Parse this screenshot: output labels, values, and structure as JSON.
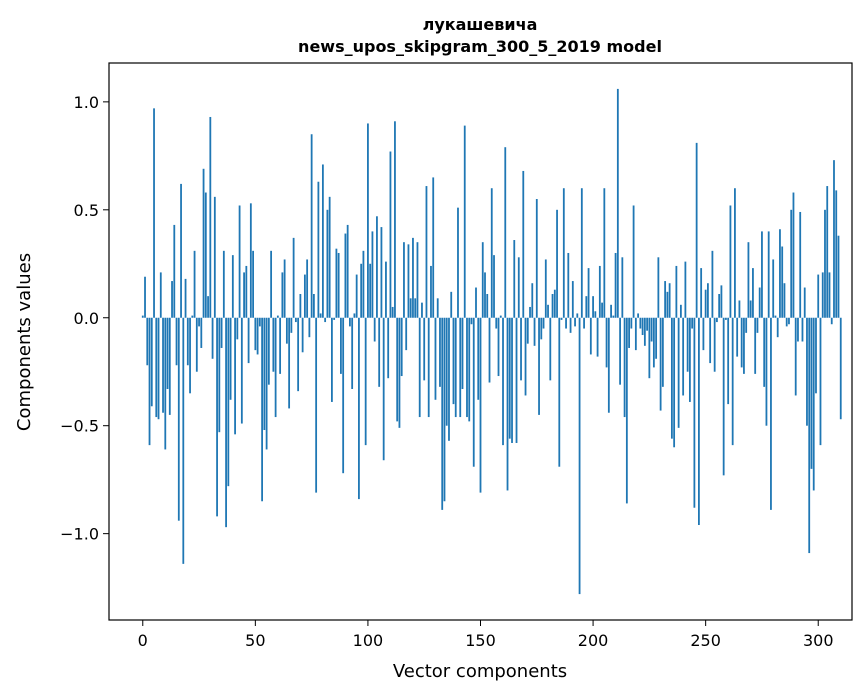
{
  "chart_data": {
    "type": "bar",
    "title_line1": "лукашевича",
    "title_line2": "news_upos_skipgram_300_5_2019 model",
    "xlabel": "Vector components",
    "ylabel": "Components values",
    "xlim": [
      -15,
      315
    ],
    "ylim": [
      -1.4,
      1.18
    ],
    "xticks": [
      0,
      50,
      100,
      150,
      200,
      250,
      300
    ],
    "yticks": [
      -1.0,
      -0.5,
      0.0,
      0.5,
      1.0
    ],
    "ytick_labels": [
      "−1.0",
      "−0.5",
      "0.0",
      "0.5",
      "1.0"
    ],
    "bar_color": "#1f77b4",
    "values": [
      0.01,
      0.19,
      -0.22,
      -0.59,
      -0.41,
      0.97,
      -0.46,
      -0.47,
      0.21,
      -0.44,
      -0.61,
      -0.33,
      -0.45,
      0.17,
      0.43,
      -0.22,
      -0.94,
      0.62,
      -1.14,
      0.18,
      -0.22,
      -0.35,
      0.01,
      0.31,
      -0.25,
      -0.04,
      -0.14,
      0.69,
      0.58,
      0.1,
      0.93,
      -0.19,
      0.56,
      -0.92,
      -0.53,
      -0.14,
      0.31,
      -0.97,
      -0.78,
      -0.38,
      0.29,
      -0.54,
      -0.1,
      0.52,
      -0.49,
      0.21,
      0.24,
      -0.21,
      0.53,
      0.31,
      -0.15,
      -0.17,
      -0.04,
      -0.85,
      -0.52,
      -0.61,
      -0.31,
      0.31,
      -0.25,
      -0.46,
      0.01,
      -0.26,
      0.21,
      0.27,
      -0.12,
      -0.42,
      -0.07,
      0.37,
      -0.02,
      -0.34,
      0.11,
      -0.16,
      0.2,
      0.27,
      -0.09,
      0.85,
      0.11,
      -0.81,
      0.63,
      0.02,
      0.71,
      -0.02,
      0.5,
      0.56,
      -0.39,
      -0.01,
      0.32,
      0.3,
      -0.26,
      -0.72,
      0.39,
      0.43,
      -0.04,
      -0.33,
      0.02,
      0.2,
      -0.84,
      0.25,
      0.31,
      -0.59,
      0.9,
      0.25,
      0.4,
      -0.11,
      0.47,
      -0.32,
      0.42,
      -0.66,
      0.26,
      -0.28,
      0.77,
      0.05,
      0.91,
      -0.48,
      -0.51,
      -0.27,
      0.35,
      -0.15,
      0.34,
      0.09,
      0.37,
      0.09,
      0.35,
      -0.46,
      0.07,
      -0.29,
      0.61,
      -0.46,
      0.24,
      0.65,
      -0.38,
      0.09,
      -0.32,
      -0.89,
      -0.85,
      -0.5,
      -0.57,
      0.12,
      -0.4,
      -0.46,
      0.51,
      -0.46,
      -0.33,
      0.89,
      -0.46,
      -0.48,
      -0.03,
      -0.69,
      0.14,
      -0.38,
      -0.81,
      0.35,
      0.21,
      0.11,
      -0.3,
      0.6,
      0.29,
      -0.05,
      -0.27,
      0.01,
      -0.59,
      0.79,
      -0.8,
      -0.56,
      -0.58,
      0.36,
      -0.58,
      0.28,
      -0.29,
      0.68,
      -0.36,
      -0.12,
      0.05,
      0.16,
      -0.13,
      0.55,
      -0.45,
      -0.1,
      -0.05,
      0.27,
      0.06,
      -0.29,
      0.11,
      0.13,
      0.5,
      -0.69,
      -0.01,
      0.6,
      -0.05,
      0.3,
      -0.07,
      0.17,
      -0.04,
      0.02,
      -1.28,
      0.6,
      -0.05,
      0.1,
      0.23,
      -0.17,
      0.1,
      0.03,
      -0.18,
      0.24,
      0.07,
      0.6,
      -0.23,
      -0.44,
      0.06,
      0.01,
      0.3,
      1.06,
      -0.31,
      0.28,
      -0.46,
      -0.86,
      -0.14,
      -0.05,
      0.52,
      -0.15,
      0.02,
      -0.05,
      -0.08,
      -0.13,
      -0.06,
      -0.28,
      -0.11,
      -0.23,
      -0.19,
      0.28,
      -0.43,
      -0.32,
      0.17,
      0.12,
      0.16,
      -0.56,
      -0.6,
      0.24,
      -0.51,
      0.06,
      -0.36,
      0.26,
      -0.25,
      -0.39,
      -0.05,
      -0.88,
      0.81,
      -0.96,
      0.23,
      -0.15,
      0.13,
      0.16,
      -0.21,
      0.31,
      -0.25,
      -0.02,
      0.11,
      0.15,
      -0.73,
      -0.01,
      -0.4,
      0.52,
      -0.59,
      0.6,
      -0.18,
      0.08,
      -0.23,
      -0.26,
      -0.07,
      0.35,
      0.08,
      0.23,
      -0.26,
      -0.07,
      0.14,
      0.4,
      -0.32,
      -0.5,
      0.4,
      -0.89,
      0.27,
      0.01,
      -0.09,
      0.41,
      0.33,
      0.16,
      -0.04,
      -0.03,
      0.5,
      0.58,
      -0.36,
      -0.11,
      0.49,
      -0.11,
      0.14,
      -0.5,
      -1.09,
      -0.7,
      -0.8,
      -0.35,
      0.2,
      -0.59,
      0.21,
      0.5,
      0.61,
      0.21,
      -0.03,
      0.73,
      0.59,
      0.38,
      -0.47
    ]
  }
}
